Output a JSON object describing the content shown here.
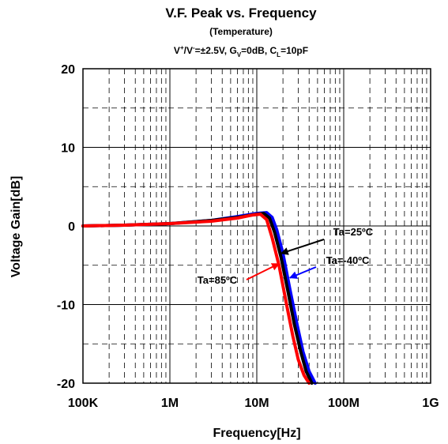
{
  "chart_data": {
    "type": "line",
    "title": "V.F. Peak vs. Frequency",
    "subtitle": "(Temperature)",
    "conditions": {
      "v_label": "V",
      "v_plus_sup": "+",
      "v_slash": "/V",
      "v_minus_sup": "-",
      "v_value": "=±2.5V, G",
      "gv_sub": "V",
      "gv_value": "=0dB, C",
      "cl_sub": "L",
      "cl_value": "=10pF"
    },
    "xlabel": "Frequency[Hz]",
    "ylabel": "Voltage Gain[dB]",
    "x_scale": "log",
    "xlim": [
      100000,
      1000000000
    ],
    "ylim": [
      -20,
      20
    ],
    "x_ticks": [
      {
        "value": 100000,
        "label": "100K"
      },
      {
        "value": 1000000,
        "label": "1M"
      },
      {
        "value": 10000000,
        "label": "10M"
      },
      {
        "value": 100000000,
        "label": "100M"
      },
      {
        "value": 1000000000,
        "label": "1G"
      }
    ],
    "y_ticks": [
      {
        "value": 20,
        "label": "20"
      },
      {
        "value": 10,
        "label": "10"
      },
      {
        "value": 0,
        "label": "0"
      },
      {
        "value": -10,
        "label": "-10"
      },
      {
        "value": -20,
        "label": "-20"
      }
    ],
    "grid": true,
    "series": [
      {
        "name": "Ta=85ºC",
        "color": "#ff0000",
        "x": [
          100000,
          300000,
          1000000,
          3000000,
          6000000,
          9000000,
          11000000,
          13000000,
          15000000,
          18000000,
          22000000,
          26000000,
          30000000,
          35000000,
          40000000
        ],
        "y": [
          0,
          0.1,
          0.3,
          0.6,
          1.0,
          1.4,
          1.5,
          0.8,
          -1.5,
          -5,
          -10,
          -14,
          -17,
          -19,
          -20
        ]
      },
      {
        "name": "Ta=25ºC",
        "color": "#000000",
        "x": [
          100000,
          300000,
          1000000,
          3000000,
          6000000,
          10000000,
          12000000,
          14000000,
          16000000,
          19000000,
          23000000,
          27000000,
          32000000,
          37000000,
          43000000
        ],
        "y": [
          0,
          0.1,
          0.3,
          0.7,
          1.1,
          1.5,
          1.6,
          1.0,
          -0.8,
          -4,
          -8.5,
          -12.5,
          -16,
          -18.5,
          -20
        ]
      },
      {
        "name": "Ta=-40ºC",
        "color": "#0000ff",
        "x": [
          100000,
          300000,
          1000000,
          3000000,
          6000000,
          10000000,
          13000000,
          15000000,
          17000000,
          20000000,
          24000000,
          29000000,
          34000000,
          40000000,
          47000000
        ],
        "y": [
          0,
          0.1,
          0.3,
          0.7,
          1.2,
          1.6,
          1.7,
          1.1,
          -0.5,
          -3.5,
          -8,
          -12.5,
          -16,
          -18.5,
          -20
        ]
      }
    ],
    "annotations": [
      {
        "text": "Ta=25ºC",
        "series": "Ta=25ºC",
        "arrow_to": [
          19000000,
          -3.5
        ]
      },
      {
        "text": "Ta=-40ºC",
        "series": "Ta=-40ºC",
        "arrow_to": [
          24000000,
          -6.6
        ]
      },
      {
        "text": "Ta=85ºC",
        "series": "Ta=85ºC",
        "arrow_to": [
          18000000,
          -4.8
        ]
      }
    ]
  }
}
